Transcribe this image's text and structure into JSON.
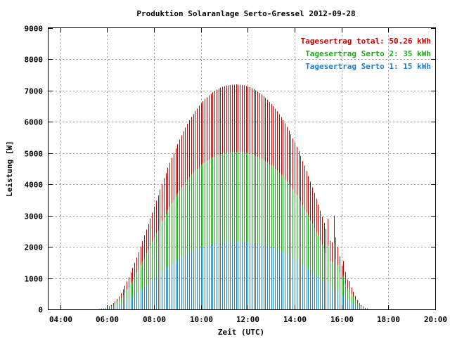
{
  "chart_data": {
    "type": "bar",
    "title": "Produktion Solaranlage Serto-Gressel 2012-09-28",
    "xlabel": "Zeit (UTC)",
    "ylabel": "Leistung [W]",
    "xlim": [
      "03:30",
      "20:00"
    ],
    "ylim": [
      0,
      9000
    ],
    "grid": true,
    "legend_position": "top-right",
    "x_ticks": [
      "04:00",
      "06:00",
      "08:00",
      "10:00",
      "12:00",
      "14:00",
      "16:00",
      "18:00",
      "20:00"
    ],
    "y_ticks": [
      "0",
      "1000",
      "2000",
      "3000",
      "4000",
      "5000",
      "6000",
      "7000",
      "8000",
      "9000"
    ],
    "legend": [
      {
        "label": "Tagesertrag total: 50.26 kWh",
        "color": "#cc0000"
      },
      {
        "label": "Tagesertrag Serto 2: 35 kWh",
        "color": "#1aaa1a"
      },
      {
        "label": "Tagesertrag Serto 1: 15 kWh",
        "color": "#1a7fd6"
      }
    ],
    "x": [
      "05:40",
      "05:45",
      "05:50",
      "05:55",
      "06:00",
      "06:05",
      "06:10",
      "06:15",
      "06:20",
      "06:25",
      "06:30",
      "06:35",
      "06:40",
      "06:45",
      "06:50",
      "06:55",
      "07:00",
      "07:05",
      "07:10",
      "07:15",
      "07:20",
      "07:25",
      "07:30",
      "07:35",
      "07:40",
      "07:45",
      "07:50",
      "07:55",
      "08:00",
      "08:05",
      "08:10",
      "08:15",
      "08:20",
      "08:25",
      "08:30",
      "08:35",
      "08:40",
      "08:45",
      "08:50",
      "08:55",
      "09:00",
      "09:05",
      "09:10",
      "09:15",
      "09:20",
      "09:25",
      "09:30",
      "09:35",
      "09:40",
      "09:45",
      "09:50",
      "09:55",
      "10:00",
      "10:05",
      "10:10",
      "10:15",
      "10:20",
      "10:25",
      "10:30",
      "10:35",
      "10:40",
      "10:45",
      "10:50",
      "10:55",
      "11:00",
      "11:05",
      "11:10",
      "11:15",
      "11:20",
      "11:25",
      "11:30",
      "11:35",
      "11:40",
      "11:45",
      "11:50",
      "11:55",
      "12:00",
      "12:05",
      "12:10",
      "12:15",
      "12:20",
      "12:25",
      "12:30",
      "12:35",
      "12:40",
      "12:45",
      "12:50",
      "12:55",
      "13:00",
      "13:05",
      "13:10",
      "13:15",
      "13:20",
      "13:25",
      "13:30",
      "13:35",
      "13:40",
      "13:45",
      "13:50",
      "13:55",
      "14:00",
      "14:05",
      "14:10",
      "14:15",
      "14:20",
      "14:25",
      "14:30",
      "14:35",
      "14:40",
      "14:45",
      "14:50",
      "14:55",
      "15:00",
      "15:05",
      "15:10",
      "15:15",
      "15:20",
      "15:25",
      "15:30",
      "15:35",
      "15:40",
      "15:45",
      "15:50",
      "15:55",
      "16:00",
      "16:05",
      "16:10",
      "16:15",
      "16:20",
      "16:25",
      "16:30",
      "16:35",
      "16:40",
      "16:45",
      "16:50",
      "16:55",
      "17:00",
      "17:05"
    ],
    "series": [
      {
        "name": "Tagesertrag total: 50.26 kWh",
        "color": "#cc0000",
        "values": [
          10,
          20,
          30,
          40,
          70,
          100,
          140,
          200,
          260,
          340,
          420,
          520,
          640,
          760,
          890,
          1030,
          1180,
          1330,
          1490,
          1660,
          1830,
          2010,
          2180,
          2370,
          2550,
          2730,
          2910,
          3100,
          3290,
          3480,
          3650,
          3840,
          4010,
          4200,
          4360,
          4530,
          4690,
          4850,
          5000,
          5150,
          5290,
          5430,
          5570,
          5700,
          5820,
          5940,
          6050,
          6160,
          6250,
          6350,
          6430,
          6520,
          6590,
          6660,
          6730,
          6790,
          6850,
          6900,
          6950,
          6990,
          7030,
          7070,
          7100,
          7120,
          7140,
          7160,
          7170,
          7180,
          7190,
          7190,
          7200,
          7190,
          7190,
          7180,
          7170,
          7150,
          7130,
          7110,
          7080,
          7050,
          7010,
          6970,
          6930,
          6880,
          6830,
          6770,
          6710,
          6640,
          6570,
          6500,
          6420,
          6340,
          6250,
          6150,
          6050,
          5950,
          5840,
          5720,
          5600,
          5470,
          5340,
          5200,
          5060,
          4910,
          4750,
          4600,
          4430,
          4260,
          4090,
          3910,
          3730,
          3540,
          3350,
          3160,
          2960,
          2770,
          2570,
          2900,
          2200,
          2150,
          3000,
          2300,
          2000,
          1700,
          1400,
          1550,
          1200,
          950,
          900,
          700,
          560,
          430,
          300,
          200,
          140,
          90,
          50,
          20
        ]
      },
      {
        "name": "Tagesertrag Serto 2: 35 kWh",
        "color": "#1aaa1a",
        "values": [
          7,
          14,
          21,
          28,
          49,
          70,
          98,
          140,
          182,
          238,
          294,
          364,
          448,
          532,
          623,
          721,
          826,
          931,
          1043,
          1162,
          1281,
          1407,
          1526,
          1659,
          1785,
          1911,
          2037,
          2170,
          2303,
          2436,
          2555,
          2688,
          2807,
          2940,
          3052,
          3171,
          3283,
          3395,
          3500,
          3605,
          3703,
          3801,
          3899,
          3990,
          4074,
          4158,
          4235,
          4312,
          4375,
          4445,
          4501,
          4564,
          4613,
          4662,
          4711,
          4753,
          4795,
          4830,
          4865,
          4893,
          4921,
          4949,
          4970,
          4984,
          4998,
          5012,
          5019,
          5026,
          5033,
          5033,
          5040,
          5033,
          5033,
          5026,
          5019,
          5005,
          4991,
          4977,
          4956,
          4935,
          4907,
          4879,
          4851,
          4816,
          4781,
          4739,
          4697,
          4648,
          4599,
          4550,
          4494,
          4438,
          4375,
          4305,
          4235,
          4165,
          4088,
          4004,
          3920,
          3829,
          3738,
          3640,
          3542,
          3437,
          3325,
          3220,
          3101,
          2982,
          2863,
          2737,
          2611,
          2478,
          2345,
          2212,
          2072,
          1939,
          1799,
          2030,
          1540,
          1505,
          2100,
          1610,
          1400,
          1190,
          980,
          1085,
          840,
          665,
          630,
          490,
          392,
          301,
          210,
          140,
          98,
          63,
          35,
          14
        ]
      },
      {
        "name": "Tagesertrag Serto 1: 15 kWh",
        "color": "#1a7fd6",
        "values": [
          3,
          6,
          9,
          12,
          21,
          30,
          42,
          60,
          78,
          102,
          126,
          156,
          192,
          228,
          267,
          309,
          354,
          399,
          447,
          498,
          549,
          603,
          654,
          711,
          765,
          819,
          873,
          930,
          987,
          1044,
          1095,
          1152,
          1203,
          1260,
          1308,
          1359,
          1407,
          1455,
          1500,
          1545,
          1587,
          1629,
          1671,
          1710,
          1746,
          1782,
          1815,
          1848,
          1875,
          1905,
          1929,
          1956,
          1977,
          1998,
          2019,
          2037,
          2055,
          2070,
          2085,
          2097,
          2109,
          2121,
          2130,
          2136,
          2142,
          2148,
          2151,
          2154,
          2157,
          2157,
          2160,
          2157,
          2157,
          2154,
          2151,
          2145,
          2139,
          2133,
          2124,
          2115,
          2103,
          2091,
          2079,
          2064,
          2049,
          2031,
          2013,
          1992,
          1971,
          1950,
          1926,
          1902,
          1875,
          1845,
          1815,
          1785,
          1752,
          1716,
          1680,
          1641,
          1602,
          1560,
          1518,
          1473,
          1425,
          1380,
          1329,
          1278,
          1227,
          1173,
          1119,
          1062,
          1005,
          948,
          888,
          831,
          771,
          870,
          660,
          645,
          900,
          690,
          600,
          510,
          420,
          465,
          360,
          285,
          270,
          210,
          168,
          129,
          90,
          60,
          42,
          27,
          15,
          6
        ]
      }
    ]
  }
}
